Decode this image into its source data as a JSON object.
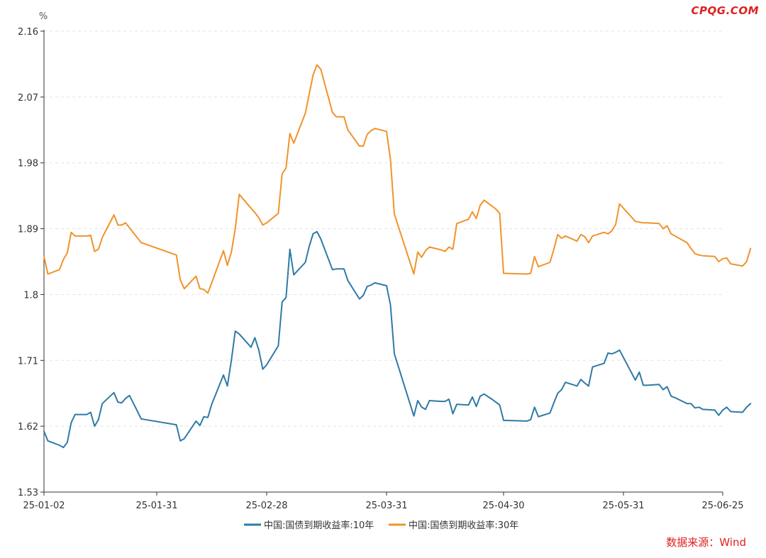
{
  "watermark": "CPQG.COM",
  "source": "数据来源：Wind",
  "chart_data": {
    "type": "line",
    "y_unit": "%",
    "ylim": [
      1.53,
      2.16
    ],
    "y_ticks": [
      "2.16",
      "2.07",
      "1.98",
      "1.89",
      "1.8",
      "1.71",
      "1.62",
      "1.53"
    ],
    "x_tick_labels": [
      "25-01-02",
      "25-01-31",
      "25-02-28",
      "25-03-31",
      "25-04-30",
      "25-05-31",
      "25-06-25"
    ],
    "x_tick_dates": [
      "2025-01-02",
      "2025-01-31",
      "2025-02-28",
      "2025-03-31",
      "2025-04-30",
      "2025-05-31",
      "2025-06-25"
    ],
    "grid": "horizontal dashed",
    "legend_position": "bottom-center",
    "colors": {
      "10y": "#2f7aa6",
      "30y": "#f0932b",
      "watermark": "#e02020"
    },
    "series": [
      {
        "name": "中国:国债到期收益率:10年",
        "color": "#2f7aa6",
        "points": [
          [
            "2025-01-02",
            1.613
          ],
          [
            "2025-01-03",
            1.6
          ],
          [
            "2025-01-06",
            1.594
          ],
          [
            "2025-01-07",
            1.591
          ],
          [
            "2025-01-08",
            1.598
          ],
          [
            "2025-01-09",
            1.625
          ],
          [
            "2025-01-10",
            1.636
          ],
          [
            "2025-01-13",
            1.636
          ],
          [
            "2025-01-14",
            1.639
          ],
          [
            "2025-01-15",
            1.62
          ],
          [
            "2025-01-16",
            1.629
          ],
          [
            "2025-01-17",
            1.651
          ],
          [
            "2025-01-20",
            1.666
          ],
          [
            "2025-01-21",
            1.653
          ],
          [
            "2025-01-22",
            1.652
          ],
          [
            "2025-01-23",
            1.658
          ],
          [
            "2025-01-24",
            1.662
          ],
          [
            "2025-01-27",
            1.63
          ],
          [
            "2025-02-05",
            1.622
          ],
          [
            "2025-02-06",
            1.6
          ],
          [
            "2025-02-07",
            1.603
          ],
          [
            "2025-02-10",
            1.627
          ],
          [
            "2025-02-11",
            1.621
          ],
          [
            "2025-02-12",
            1.633
          ],
          [
            "2025-02-13",
            1.632
          ],
          [
            "2025-02-14",
            1.65
          ],
          [
            "2025-02-17",
            1.69
          ],
          [
            "2025-02-18",
            1.675
          ],
          [
            "2025-02-19",
            1.71
          ],
          [
            "2025-02-20",
            1.75
          ],
          [
            "2025-02-21",
            1.746
          ],
          [
            "2025-02-24",
            1.728
          ],
          [
            "2025-02-25",
            1.741
          ],
          [
            "2025-02-26",
            1.724
          ],
          [
            "2025-02-27",
            1.698
          ],
          [
            "2025-02-28",
            1.704
          ],
          [
            "2025-03-03",
            1.73
          ],
          [
            "2025-03-04",
            1.79
          ],
          [
            "2025-03-05",
            1.796
          ],
          [
            "2025-03-06",
            1.862
          ],
          [
            "2025-03-07",
            1.827
          ],
          [
            "2025-03-10",
            1.844
          ],
          [
            "2025-03-11",
            1.866
          ],
          [
            "2025-03-12",
            1.883
          ],
          [
            "2025-03-13",
            1.886
          ],
          [
            "2025-03-14",
            1.876
          ],
          [
            "2025-03-17",
            1.834
          ],
          [
            "2025-03-18",
            1.835
          ],
          [
            "2025-03-20",
            1.835
          ],
          [
            "2025-03-21",
            1.819
          ],
          [
            "2025-03-24",
            1.794
          ],
          [
            "2025-03-25",
            1.799
          ],
          [
            "2025-03-26",
            1.811
          ],
          [
            "2025-03-27",
            1.813
          ],
          [
            "2025-03-28",
            1.816
          ],
          [
            "2025-03-31",
            1.812
          ],
          [
            "2025-04-01",
            1.786
          ],
          [
            "2025-04-02",
            1.719
          ],
          [
            "2025-04-07",
            1.634
          ],
          [
            "2025-04-08",
            1.655
          ],
          [
            "2025-04-09",
            1.646
          ],
          [
            "2025-04-10",
            1.643
          ],
          [
            "2025-04-11",
            1.655
          ],
          [
            "2025-04-14",
            1.654
          ],
          [
            "2025-04-15",
            1.654
          ],
          [
            "2025-04-16",
            1.657
          ],
          [
            "2025-04-17",
            1.637
          ],
          [
            "2025-04-18",
            1.65
          ],
          [
            "2025-04-21",
            1.649
          ],
          [
            "2025-04-22",
            1.66
          ],
          [
            "2025-04-23",
            1.647
          ],
          [
            "2025-04-24",
            1.661
          ],
          [
            "2025-04-25",
            1.664
          ],
          [
            "2025-04-27",
            1.657
          ],
          [
            "2025-04-28",
            1.653
          ],
          [
            "2025-04-29",
            1.649
          ],
          [
            "2025-04-30",
            1.628
          ],
          [
            "2025-05-06",
            1.627
          ],
          [
            "2025-05-07",
            1.629
          ],
          [
            "2025-05-08",
            1.646
          ],
          [
            "2025-05-09",
            1.633
          ],
          [
            "2025-05-12",
            1.638
          ],
          [
            "2025-05-13",
            1.652
          ],
          [
            "2025-05-14",
            1.665
          ],
          [
            "2025-05-15",
            1.67
          ],
          [
            "2025-05-16",
            1.68
          ],
          [
            "2025-05-19",
            1.675
          ],
          [
            "2025-05-20",
            1.684
          ],
          [
            "2025-05-21",
            1.679
          ],
          [
            "2025-05-22",
            1.675
          ],
          [
            "2025-05-23",
            1.701
          ],
          [
            "2025-05-26",
            1.706
          ],
          [
            "2025-05-27",
            1.72
          ],
          [
            "2025-05-28",
            1.719
          ],
          [
            "2025-05-29",
            1.721
          ],
          [
            "2025-05-30",
            1.724
          ],
          [
            "2025-06-03",
            1.683
          ],
          [
            "2025-06-04",
            1.694
          ],
          [
            "2025-06-05",
            1.676
          ],
          [
            "2025-06-06",
            1.676
          ],
          [
            "2025-06-09",
            1.677
          ],
          [
            "2025-06-10",
            1.67
          ],
          [
            "2025-06-11",
            1.674
          ],
          [
            "2025-06-12",
            1.661
          ],
          [
            "2025-06-13",
            1.659
          ],
          [
            "2025-06-16",
            1.651
          ],
          [
            "2025-06-17",
            1.651
          ],
          [
            "2025-06-18",
            1.645
          ],
          [
            "2025-06-19",
            1.646
          ],
          [
            "2025-06-20",
            1.643
          ],
          [
            "2025-06-23",
            1.642
          ],
          [
            "2025-06-24",
            1.635
          ],
          [
            "2025-06-25",
            1.642
          ],
          [
            "2025-06-26",
            1.646
          ],
          [
            "2025-06-27",
            1.64
          ],
          [
            "2025-06-30",
            1.639
          ],
          [
            "2025-07-01",
            1.646
          ],
          [
            "2025-07-02",
            1.651
          ]
        ]
      },
      {
        "name": "中国:国债到期收益率:30年",
        "color": "#f0932b",
        "points": [
          [
            "2025-01-02",
            1.852
          ],
          [
            "2025-01-03",
            1.828
          ],
          [
            "2025-01-06",
            1.834
          ],
          [
            "2025-01-07",
            1.848
          ],
          [
            "2025-01-08",
            1.857
          ],
          [
            "2025-01-09",
            1.885
          ],
          [
            "2025-01-10",
            1.88
          ],
          [
            "2025-01-13",
            1.88
          ],
          [
            "2025-01-14",
            1.881
          ],
          [
            "2025-01-15",
            1.859
          ],
          [
            "2025-01-16",
            1.862
          ],
          [
            "2025-01-17",
            1.878
          ],
          [
            "2025-01-20",
            1.909
          ],
          [
            "2025-01-21",
            1.895
          ],
          [
            "2025-01-22",
            1.895
          ],
          [
            "2025-01-23",
            1.898
          ],
          [
            "2025-01-24",
            1.891
          ],
          [
            "2025-01-27",
            1.871
          ],
          [
            "2025-02-05",
            1.854
          ],
          [
            "2025-02-06",
            1.82
          ],
          [
            "2025-02-07",
            1.808
          ],
          [
            "2025-02-10",
            1.825
          ],
          [
            "2025-02-11",
            1.808
          ],
          [
            "2025-02-12",
            1.807
          ],
          [
            "2025-02-13",
            1.802
          ],
          [
            "2025-02-14",
            1.816
          ],
          [
            "2025-02-17",
            1.86
          ],
          [
            "2025-02-18",
            1.84
          ],
          [
            "2025-02-19",
            1.858
          ],
          [
            "2025-02-20",
            1.89
          ],
          [
            "2025-02-21",
            1.937
          ],
          [
            "2025-02-24",
            1.918
          ],
          [
            "2025-02-25",
            1.912
          ],
          [
            "2025-02-26",
            1.905
          ],
          [
            "2025-02-27",
            1.895
          ],
          [
            "2025-02-28",
            1.898
          ],
          [
            "2025-03-03",
            1.911
          ],
          [
            "2025-03-04",
            1.965
          ],
          [
            "2025-03-05",
            1.973
          ],
          [
            "2025-03-06",
            2.02
          ],
          [
            "2025-03-07",
            2.007
          ],
          [
            "2025-03-10",
            2.048
          ],
          [
            "2025-03-11",
            2.074
          ],
          [
            "2025-03-12",
            2.1
          ],
          [
            "2025-03-13",
            2.114
          ],
          [
            "2025-03-14",
            2.108
          ],
          [
            "2025-03-17",
            2.049
          ],
          [
            "2025-03-18",
            2.043
          ],
          [
            "2025-03-20",
            2.043
          ],
          [
            "2025-03-21",
            2.025
          ],
          [
            "2025-03-24",
            2.003
          ],
          [
            "2025-03-25",
            2.003
          ],
          [
            "2025-03-26",
            2.019
          ],
          [
            "2025-03-27",
            2.024
          ],
          [
            "2025-03-28",
            2.027
          ],
          [
            "2025-03-31",
            2.023
          ],
          [
            "2025-04-01",
            1.985
          ],
          [
            "2025-04-02",
            1.91
          ],
          [
            "2025-04-07",
            1.828
          ],
          [
            "2025-04-08",
            1.858
          ],
          [
            "2025-04-09",
            1.851
          ],
          [
            "2025-04-10",
            1.86
          ],
          [
            "2025-04-11",
            1.865
          ],
          [
            "2025-04-14",
            1.861
          ],
          [
            "2025-04-15",
            1.859
          ],
          [
            "2025-04-16",
            1.865
          ],
          [
            "2025-04-17",
            1.862
          ],
          [
            "2025-04-18",
            1.897
          ],
          [
            "2025-04-21",
            1.903
          ],
          [
            "2025-04-22",
            1.913
          ],
          [
            "2025-04-23",
            1.904
          ],
          [
            "2025-04-24",
            1.922
          ],
          [
            "2025-04-25",
            1.929
          ],
          [
            "2025-04-27",
            1.921
          ],
          [
            "2025-04-28",
            1.917
          ],
          [
            "2025-04-29",
            1.911
          ],
          [
            "2025-04-30",
            1.829
          ],
          [
            "2025-05-06",
            1.828
          ],
          [
            "2025-05-07",
            1.829
          ],
          [
            "2025-05-08",
            1.852
          ],
          [
            "2025-05-09",
            1.838
          ],
          [
            "2025-05-12",
            1.844
          ],
          [
            "2025-05-13",
            1.862
          ],
          [
            "2025-05-14",
            1.882
          ],
          [
            "2025-05-15",
            1.877
          ],
          [
            "2025-05-16",
            1.88
          ],
          [
            "2025-05-19",
            1.873
          ],
          [
            "2025-05-20",
            1.882
          ],
          [
            "2025-05-21",
            1.879
          ],
          [
            "2025-05-22",
            1.871
          ],
          [
            "2025-05-23",
            1.88
          ],
          [
            "2025-05-26",
            1.885
          ],
          [
            "2025-05-27",
            1.883
          ],
          [
            "2025-05-28",
            1.887
          ],
          [
            "2025-05-29",
            1.896
          ],
          [
            "2025-05-30",
            1.924
          ],
          [
            "2025-06-03",
            1.9
          ],
          [
            "2025-06-04",
            1.899
          ],
          [
            "2025-06-05",
            1.898
          ],
          [
            "2025-06-06",
            1.898
          ],
          [
            "2025-06-09",
            1.897
          ],
          [
            "2025-06-10",
            1.89
          ],
          [
            "2025-06-11",
            1.894
          ],
          [
            "2025-06-12",
            1.883
          ],
          [
            "2025-06-13",
            1.88
          ],
          [
            "2025-06-16",
            1.871
          ],
          [
            "2025-06-17",
            1.863
          ],
          [
            "2025-06-18",
            1.856
          ],
          [
            "2025-06-19",
            1.854
          ],
          [
            "2025-06-20",
            1.853
          ],
          [
            "2025-06-23",
            1.852
          ],
          [
            "2025-06-24",
            1.845
          ],
          [
            "2025-06-25",
            1.849
          ],
          [
            "2025-06-26",
            1.85
          ],
          [
            "2025-06-27",
            1.842
          ],
          [
            "2025-06-30",
            1.839
          ],
          [
            "2025-07-01",
            1.845
          ],
          [
            "2025-07-02",
            1.863
          ]
        ]
      }
    ]
  }
}
